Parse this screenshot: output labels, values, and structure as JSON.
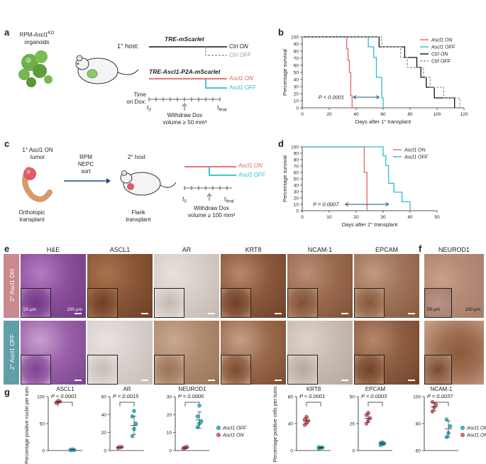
{
  "panels": {
    "a": "a",
    "b": "b",
    "c": "c",
    "d": "d",
    "e": "e",
    "f": "f",
    "g": "g"
  },
  "panel_a": {
    "organoid_label_line1": "RPM-",
    "organoid_label_gene": "Ascl1",
    "organoid_label_sup": "KO",
    "organoid_label_line2": "organoids",
    "host_label": "1° host:",
    "construct_top": "TRE-mScarlet",
    "construct_bottom": "TRE-Ascl1-P2A-mScarlet",
    "arm_ctrl_on": "Ctrl ON",
    "arm_ctrl_off": "Ctrl OFF",
    "arm_ascl1_on": "Ascl1 ON",
    "arm_ascl1_off": "Ascl1 OFF",
    "time_label_1": "Time",
    "time_label_2": "on Dox:",
    "t0": "t",
    "t0_sub": "0",
    "tfinal": "t",
    "tfinal_sub": "final",
    "withdraw_1": "Withdraw Dox",
    "withdraw_2": "volume ≥ 50 mm³"
  },
  "panel_c": {
    "tumor_1": "1° Ascl1 ON",
    "tumor_2": "tumor",
    "sort_1": "RPM",
    "sort_2": "NEPC",
    "sort_3": "sort",
    "host_2": "2° host",
    "orthotopic_1": "Orthotopic",
    "orthotopic_2": "transplant",
    "flank_1": "Flank",
    "flank_2": "transplant",
    "arm_on": "Ascl1 ON",
    "arm_off": "Ascl1 OFF",
    "t0": "t",
    "t0_sub": "0",
    "tfinal": "t",
    "tfinal_sub": "final",
    "withdraw_1": "Withdraw Dox",
    "withdraw_2": "volume ≥ 100 mm³"
  },
  "panel_e": {
    "columns": [
      "H&E",
      "ASCL1",
      "AR",
      "KRT8",
      "NCAM-1",
      "EPCAM"
    ],
    "row_on": "2° Ascl1 ON",
    "row_off": "2° Ascl1 OFF",
    "scale_inset": "50 μm",
    "scale_main": "100 μm"
  },
  "panel_f": {
    "column": "NEUROD1",
    "scale_inset": "50 μm",
    "scale_main": "100 μm"
  },
  "chart_data": [
    {
      "id": "b",
      "type": "line",
      "subtype": "kaplan-meier",
      "xlabel": "Days after 1° transplant",
      "ylabel": "Percentage survival",
      "xlim": [
        0,
        120
      ],
      "ylim": [
        0,
        100
      ],
      "xticks": [
        0,
        20,
        40,
        60,
        80,
        100,
        120
      ],
      "yticks": [
        0,
        10,
        20,
        30,
        40,
        50,
        60,
        70,
        80,
        90,
        100
      ],
      "annotation": "P < 0.0001",
      "legend_position": "top-right",
      "series": [
        {
          "name": "Ascl1 ON",
          "color": "#e8606a",
          "dashed": false,
          "x": [
            0,
            33,
            33,
            34,
            34,
            35,
            35,
            36,
            36,
            37,
            37
          ],
          "y": [
            100,
            100,
            83,
            83,
            67,
            67,
            50,
            50,
            17,
            17,
            0
          ]
        },
        {
          "name": "Ascl1 OFF",
          "color": "#2bbfcf",
          "dashed": false,
          "x": [
            0,
            49,
            49,
            53,
            53,
            55,
            55,
            59,
            59,
            60,
            60
          ],
          "y": [
            100,
            100,
            86,
            86,
            71,
            71,
            43,
            43,
            14,
            14,
            0
          ]
        },
        {
          "name": "Ctrl ON",
          "color": "#111111",
          "dashed": false,
          "x": [
            0,
            57,
            57,
            76,
            76,
            85,
            85,
            88,
            88,
            92,
            92,
            98,
            98,
            105,
            105,
            113,
            113
          ],
          "y": [
            100,
            100,
            86,
            86,
            71,
            71,
            57,
            57,
            43,
            43,
            29,
            29,
            14,
            14,
            14,
            14,
            0
          ]
        },
        {
          "name": "Ctrl OFF",
          "color": "#999999",
          "dashed": true,
          "x": [
            0,
            59,
            59,
            73,
            73,
            78,
            78,
            90,
            90,
            95,
            95,
            105,
            105,
            117,
            117
          ],
          "y": [
            100,
            100,
            86,
            86,
            71,
            71,
            57,
            57,
            43,
            43,
            29,
            29,
            14,
            14,
            0
          ]
        }
      ]
    },
    {
      "id": "d",
      "type": "line",
      "subtype": "kaplan-meier",
      "xlabel": "Days after 2° transplant",
      "ylabel": "Percentage survival",
      "xlim": [
        0,
        50
      ],
      "ylim": [
        0,
        100
      ],
      "xticks": [
        0,
        10,
        20,
        30,
        40,
        50
      ],
      "yticks": [
        0,
        10,
        20,
        30,
        40,
        50,
        60,
        70,
        80,
        90,
        100
      ],
      "annotation": "P = 0.0007",
      "legend_position": "top-right",
      "series": [
        {
          "name": "Ascl1 ON",
          "color": "#e8606a",
          "dashed": false,
          "x": [
            0,
            23,
            23,
            24,
            24
          ],
          "y": [
            100,
            100,
            60,
            60,
            0
          ]
        },
        {
          "name": "Ascl1 OFF",
          "color": "#2bbfcf",
          "dashed": false,
          "x": [
            0,
            30,
            30,
            31,
            31,
            32,
            32,
            34,
            34,
            37,
            37,
            40,
            40
          ],
          "y": [
            100,
            100,
            86,
            86,
            71,
            71,
            43,
            43,
            29,
            29,
            14,
            14,
            0
          ]
        }
      ]
    },
    {
      "id": "g-ASCL1",
      "type": "scatter",
      "title": "ASCL1",
      "p": "P < 0.0001",
      "ylim": [
        0,
        100
      ],
      "yticks": [
        0,
        50,
        100
      ],
      "ylabel": "Percentage positive nuclei per tumor",
      "groups": [
        {
          "name": "Ascl1 ON",
          "color": "#e8606a",
          "values": [
            88,
            90,
            91,
            89,
            92
          ],
          "mean": 90,
          "sd": 1.5
        },
        {
          "name": "Ascl1 OFF",
          "color": "#2bbfcf",
          "values": [
            1,
            2,
            1,
            0.5,
            1.5
          ],
          "mean": 1.2,
          "sd": 0.5
        }
      ]
    },
    {
      "id": "g-AR",
      "type": "scatter",
      "title": "AR",
      "p": "P = 0.0015",
      "ylim": [
        0,
        60
      ],
      "yticks": [
        0,
        20,
        40,
        60
      ],
      "groups": [
        {
          "name": "Ascl1 ON",
          "color": "#e8606a",
          "values": [
            3,
            3.5,
            4,
            3.2,
            3.8
          ],
          "mean": 3.5,
          "sd": 0.4
        },
        {
          "name": "Ascl1 OFF",
          "color": "#2bbfcf",
          "values": [
            16,
            24,
            30,
            38,
            44
          ],
          "mean": 28,
          "sd": 10
        }
      ]
    },
    {
      "id": "g-NEUROD1",
      "type": "scatter",
      "title": "NEUROD1",
      "p": "P = 0.0006",
      "ylim": [
        0,
        30
      ],
      "yticks": [
        0,
        10,
        20,
        30
      ],
      "groups": [
        {
          "name": "Ascl1 ON",
          "color": "#e8606a",
          "values": [
            1,
            1.5,
            2,
            1.2,
            1.8
          ],
          "mean": 1.5,
          "sd": 0.4
        },
        {
          "name": "Ascl1 OFF",
          "color": "#2bbfcf",
          "values": [
            13,
            15,
            16,
            19,
            25
          ],
          "mean": 17,
          "sd": 4.5
        }
      ]
    },
    {
      "id": "g-KRT8",
      "type": "scatter",
      "title": "KRT8",
      "p": "P < 0.0001",
      "ylim": [
        0,
        80
      ],
      "yticks": [
        0,
        40,
        80
      ],
      "ylabel": "Percentage positive cells per tumor",
      "groups": [
        {
          "name": "Ascl1 ON",
          "color": "#e8606a",
          "values": [
            38,
            41,
            44,
            46,
            50
          ],
          "mean": 44,
          "sd": 4.5
        },
        {
          "name": "Ascl1 OFF",
          "color": "#2bbfcf",
          "values": [
            3,
            4,
            4.5,
            5
          ],
          "mean": 4.2,
          "sd": 0.8
        }
      ]
    },
    {
      "id": "g-EPCAM",
      "type": "scatter",
      "title": "EPCAM",
      "p": "P = 0.0003",
      "ylim": [
        0,
        50
      ],
      "yticks": [
        0,
        25,
        50
      ],
      "groups": [
        {
          "name": "Ascl1 ON",
          "color": "#e8606a",
          "values": [
            25,
            28,
            30,
            33,
            35
          ],
          "mean": 30,
          "sd": 4
        },
        {
          "name": "Ascl1 OFF",
          "color": "#2bbfcf",
          "values": [
            5,
            6,
            6.5,
            7,
            7.5
          ],
          "mean": 6.5,
          "sd": 1
        }
      ]
    },
    {
      "id": "g-NCAM-1",
      "type": "scatter",
      "title": "NCAM-1",
      "p": "P = 0.0037",
      "ylim": [
        60,
        100
      ],
      "yticks": [
        60,
        80,
        100
      ],
      "legend_position": "right",
      "groups": [
        {
          "name": "Ascl1 ON",
          "color": "#e8606a",
          "values": [
            89,
            92,
            94,
            96
          ],
          "mean": 92.5,
          "sd": 3
        },
        {
          "name": "Ascl1 OFF",
          "color": "#2bbfcf",
          "values": [
            70,
            73,
            78,
            83
          ],
          "mean": 76,
          "sd": 6
        }
      ]
    }
  ],
  "colors": {
    "on": "#e8606a",
    "off": "#2bbfcf",
    "ctrl_on": "#111111",
    "ctrl_off": "#999999",
    "row_on_bg": "#c98a8f",
    "row_off_bg": "#5f9fa8",
    "he_purple": "#8a4f9a",
    "ihc_brown": "#a36a44"
  }
}
